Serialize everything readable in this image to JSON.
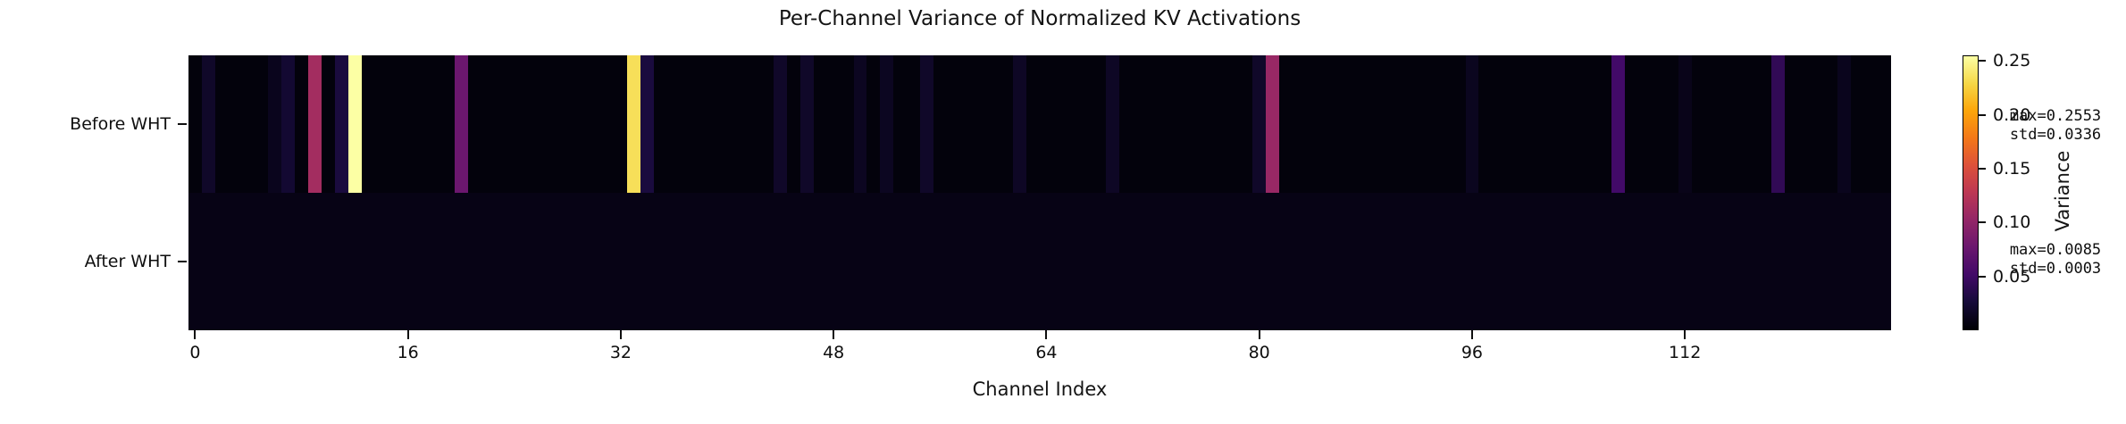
{
  "figure": {
    "title": "Per-Channel Variance of Normalized KV Activations",
    "xlabel": "Channel Index",
    "colorbar_label": "Variance"
  },
  "chart_data": {
    "type": "heatmap",
    "title": "Per-Channel Variance of Normalized KV Activations",
    "xlabel": "Channel Index",
    "colorbar_label": "Variance",
    "colormap": "inferno",
    "vmin": 0,
    "vmax": 0.2553,
    "n_channels": 128,
    "x_ticks": [
      0,
      16,
      32,
      48,
      64,
      80,
      96,
      112
    ],
    "colorbar_ticks": [
      "0.25",
      "0.20",
      "0.15",
      "0.10",
      "0.05"
    ],
    "legend_position": "right-colorbar",
    "grid": false,
    "rows": [
      {
        "label": "Before WHT",
        "max": 0.2553,
        "std": 0.0336,
        "annotation_lines": "max=0.2553\nstd=0.0336",
        "baseline_value": 0.004,
        "spike_values": {
          "1": 0.018,
          "6": 0.012,
          "7": 0.022,
          "9": 0.112,
          "11": 0.028,
          "12": 0.2553,
          "20": 0.077,
          "33": 0.235,
          "34": 0.028,
          "44": 0.018,
          "46": 0.018,
          "50": 0.014,
          "52": 0.014,
          "55": 0.018,
          "62": 0.016,
          "69": 0.016,
          "80": 0.018,
          "81": 0.105,
          "96": 0.013,
          "107": 0.051,
          "112": 0.01,
          "119": 0.041,
          "124": 0.012
        }
      },
      {
        "label": "After WHT",
        "max": 0.0085,
        "std": 0.0003,
        "annotation_lines": "max=0.0085\nstd=0.0003",
        "baseline_value": 0.008,
        "spike_values": {}
      }
    ]
  }
}
